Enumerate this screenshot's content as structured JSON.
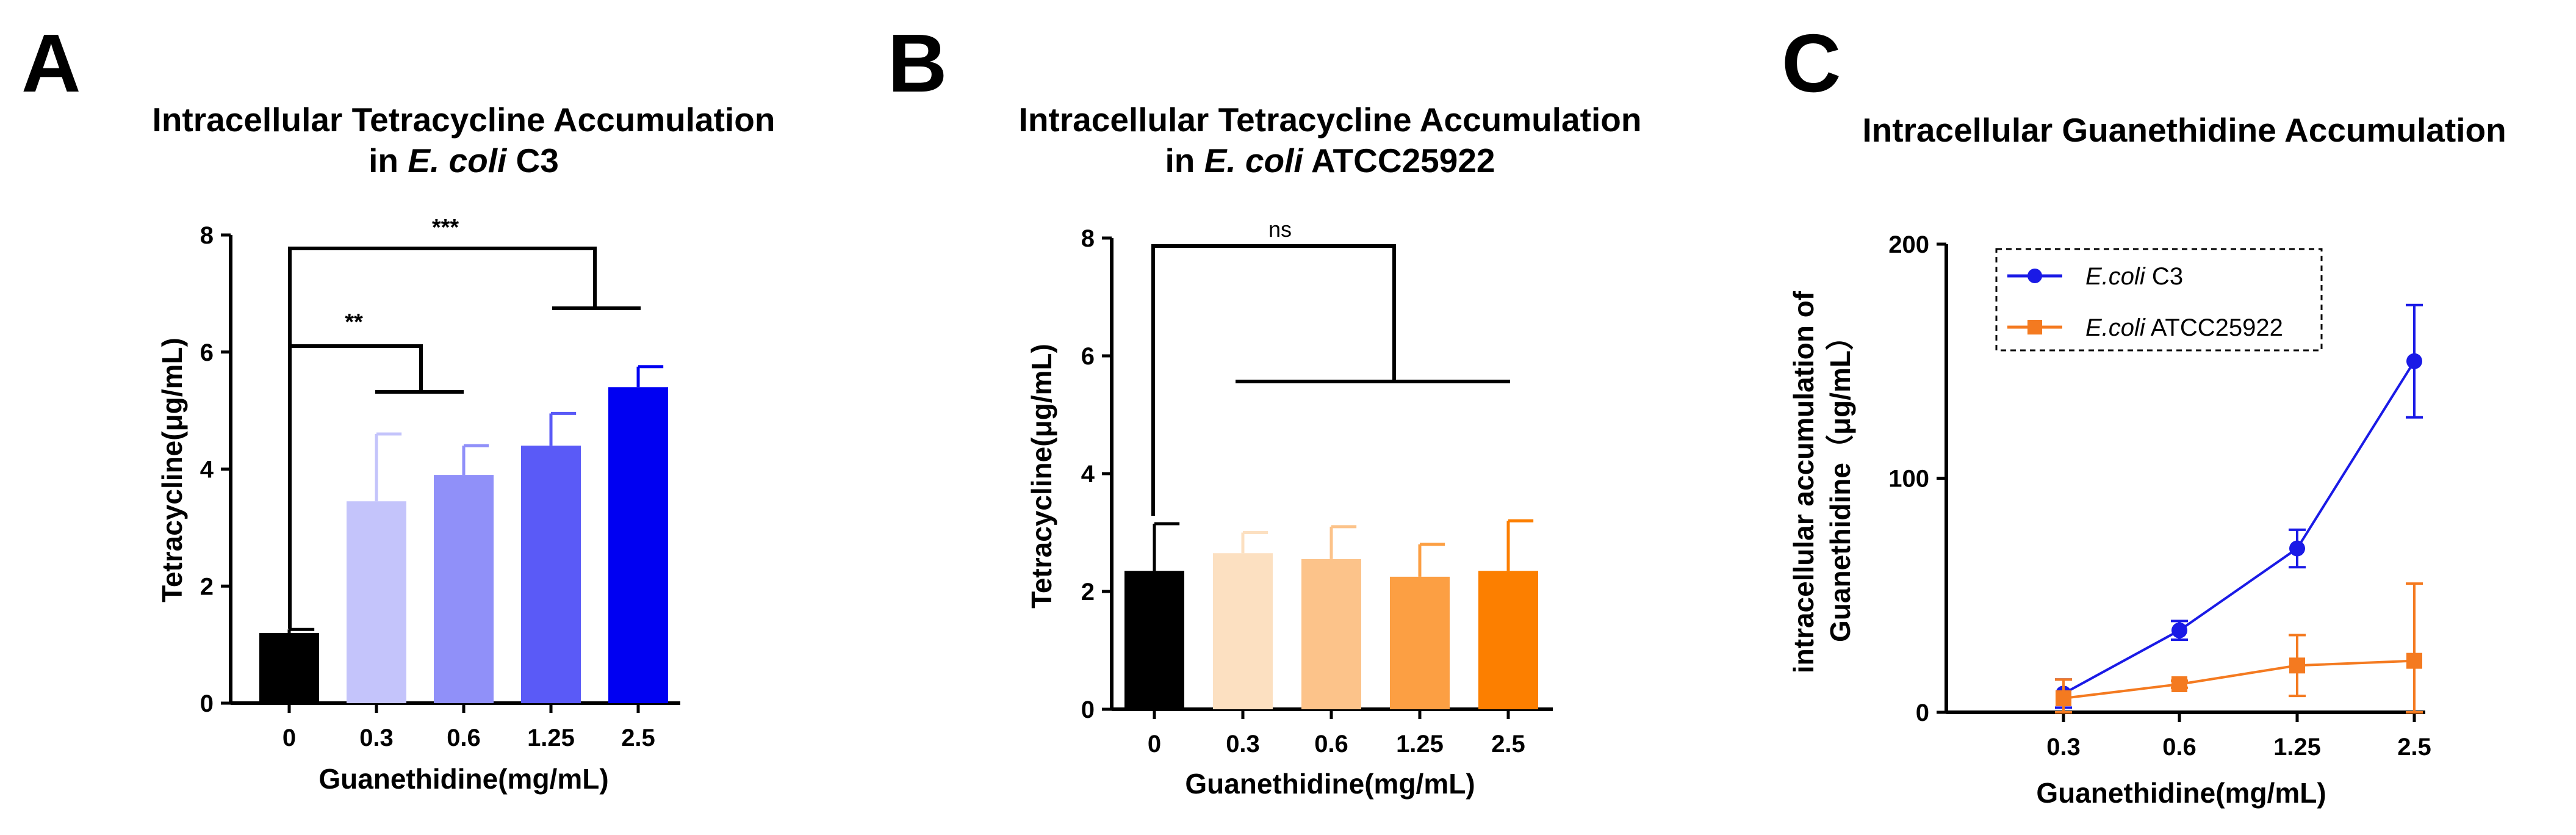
{
  "panels": {
    "A": {
      "letter": "A",
      "title_line1": "Intracellular Tetracycline Accumulation",
      "title_prefix": "in ",
      "title_italic": "E. coli",
      "title_suffix": " C3",
      "significance": [
        "***",
        "**"
      ]
    },
    "B": {
      "letter": "B",
      "title_line1": "Intracellular Tetracycline Accumulation",
      "title_prefix": "in ",
      "title_italic": "E. coli",
      "title_suffix": " ATCC25922",
      "significance": [
        "ns"
      ]
    },
    "C": {
      "letter": "C",
      "title": "Intracellular Guanethidine Accumulation",
      "ylabel_line1": "intracellular accumulation of",
      "ylabel_line2": "Guanethidine（μg/mL）"
    }
  },
  "chart_data": [
    {
      "id": "A",
      "type": "bar",
      "categories": [
        "0",
        "0.3",
        "0.6",
        "1.25",
        "2.5"
      ],
      "values": [
        1.2,
        3.45,
        3.9,
        4.4,
        5.4
      ],
      "errors": [
        0.06,
        1.15,
        0.5,
        0.55,
        0.35
      ],
      "colors": [
        "#000000",
        "#c4c4fb",
        "#9090f9",
        "#5a5af7",
        "#0000f2"
      ],
      "xlabel": "Guanethidine(mg/mL)",
      "ylabel": "Tetracycline(μg/mL)",
      "ylim": [
        0,
        8
      ],
      "yticks": [
        "0",
        "2",
        "4",
        "6",
        "8"
      ]
    },
    {
      "id": "B",
      "type": "bar",
      "categories": [
        "0",
        "0.3",
        "0.6",
        "1.25",
        "2.5"
      ],
      "values": [
        2.35,
        2.65,
        2.55,
        2.25,
        2.35
      ],
      "errors": [
        0.8,
        0.35,
        0.55,
        0.55,
        0.85
      ],
      "colors": [
        "#000000",
        "#fce0c1",
        "#fcc38a",
        "#fc9f43",
        "#fc7f00"
      ],
      "xlabel": "Guanethidine(mg/mL)",
      "ylabel": "Tetracycline(μg/mL)",
      "ylim": [
        0,
        8
      ],
      "yticks": [
        "0",
        "2",
        "4",
        "6",
        "8"
      ]
    },
    {
      "id": "C",
      "type": "line",
      "categories": [
        "0.3",
        "0.6",
        "1.25",
        "2.5"
      ],
      "xlabel": "Guanethidine(mg/mL)",
      "ylim": [
        0,
        200
      ],
      "yticks": [
        "0",
        "100",
        "200"
      ],
      "legend_position": "top-left",
      "series": [
        {
          "name_italic": "E.coli",
          "name_rest": " C3",
          "color": "#1a1ae6",
          "marker": "circle",
          "values": [
            8,
            35,
            70,
            150
          ],
          "errors": [
            6,
            4,
            8,
            24
          ]
        },
        {
          "name_italic": "E.coli",
          "name_rest": " ATCC25922",
          "color": "#f47a20",
          "marker": "square",
          "values": [
            6,
            12,
            20,
            22
          ],
          "errors": [
            8,
            1.5,
            13,
            33
          ]
        }
      ]
    }
  ]
}
